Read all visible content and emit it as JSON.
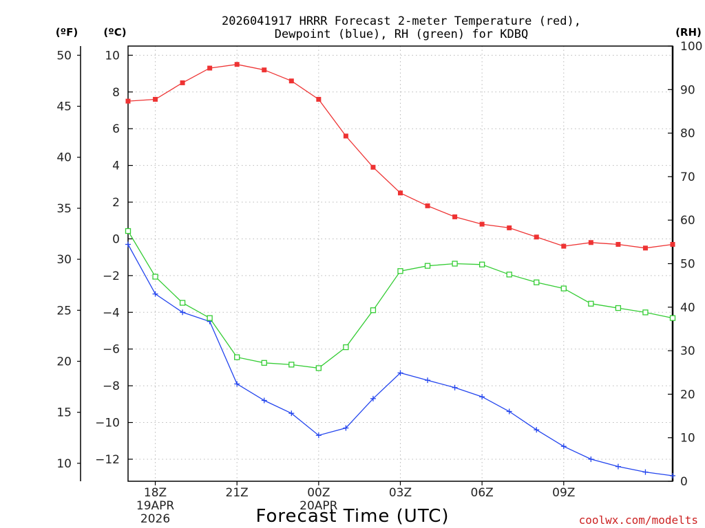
{
  "chart_data": {
    "type": "line",
    "title_line1": "2026041917 HRRR Forecast 2-meter Temperature (red),",
    "title_line2": "Dewpoint (blue), RH (green) for KDBQ",
    "xlabel": "Forecast Time (UTC)",
    "credit": "coolwx.com/modelts",
    "units": {
      "fahrenheit": "(ºF)",
      "celsius": "(ºC)",
      "rh": "(RH)"
    },
    "x_hours": [
      17,
      18,
      19,
      20,
      21,
      22,
      23,
      24,
      25,
      26,
      27,
      28,
      29,
      30,
      31,
      32,
      33,
      34,
      35,
      36,
      37
    ],
    "xlim": [
      17,
      37
    ],
    "x_ticks": [
      {
        "hour": 18,
        "lines": [
          "18Z",
          "19APR",
          "2026"
        ]
      },
      {
        "hour": 21,
        "lines": [
          "21Z"
        ]
      },
      {
        "hour": 24,
        "lines": [
          "00Z",
          "20APR"
        ]
      },
      {
        "hour": 27,
        "lines": [
          "03Z"
        ]
      },
      {
        "hour": 30,
        "lines": [
          "06Z"
        ]
      },
      {
        "hour": 33,
        "lines": [
          "09Z"
        ]
      }
    ],
    "celsius_axis": {
      "ylim": [
        -13.2,
        10.5
      ],
      "ticks": [
        10,
        8,
        6,
        4,
        2,
        0,
        -2,
        -4,
        -6,
        -8,
        -10,
        -12
      ],
      "tick_labels": [
        "10",
        "8",
        "6",
        "4",
        "2",
        "0",
        "−2",
        "−4",
        "−6",
        "−8",
        "−10",
        "−12"
      ]
    },
    "fahrenheit_axis": {
      "ticks": [
        50,
        45,
        40,
        35,
        30,
        25,
        20,
        15,
        10
      ],
      "tick_labels": [
        "50",
        "45",
        "40",
        "35",
        "30",
        "25",
        "20",
        "15",
        "10"
      ]
    },
    "rh_axis": {
      "ylim": [
        0,
        100
      ],
      "ticks": [
        100,
        90,
        80,
        70,
        60,
        50,
        40,
        30,
        20,
        10,
        0
      ],
      "tick_labels": [
        "100",
        "90",
        "80",
        "70",
        "60",
        "50",
        "40",
        "30",
        "20",
        "10",
        "0"
      ]
    },
    "series": [
      {
        "name": "Temperature",
        "axis": "celsius",
        "color": "#ee3333",
        "marker": "filled-square",
        "values": [
          7.5,
          7.6,
          8.5,
          9.3,
          9.5,
          9.2,
          8.6,
          7.6,
          5.6,
          3.9,
          2.5,
          1.8,
          1.2,
          0.8,
          0.6,
          0.1,
          -0.4,
          -0.2,
          -0.3,
          -0.5,
          -0.3
        ]
      },
      {
        "name": "Dewpoint",
        "axis": "celsius",
        "color": "#2244ee",
        "marker": "plus",
        "values": [
          -0.3,
          -3.0,
          -4.0,
          -4.5,
          -7.9,
          -8.8,
          -9.5,
          -10.7,
          -10.3,
          -8.7,
          -7.3,
          -7.7,
          -8.1,
          -8.6,
          -9.4,
          -10.4,
          -11.3,
          -12.0,
          -12.4,
          -12.7,
          -12.9
        ]
      },
      {
        "name": "RH",
        "axis": "rh",
        "color": "#33cc33",
        "marker": "open-square",
        "values": [
          57.5,
          47.0,
          41.0,
          37.5,
          28.5,
          27.2,
          26.8,
          26.0,
          30.8,
          39.3,
          48.3,
          49.5,
          50.0,
          49.8,
          47.5,
          45.7,
          44.3,
          40.8,
          39.8,
          38.8,
          37.5
        ]
      }
    ]
  }
}
